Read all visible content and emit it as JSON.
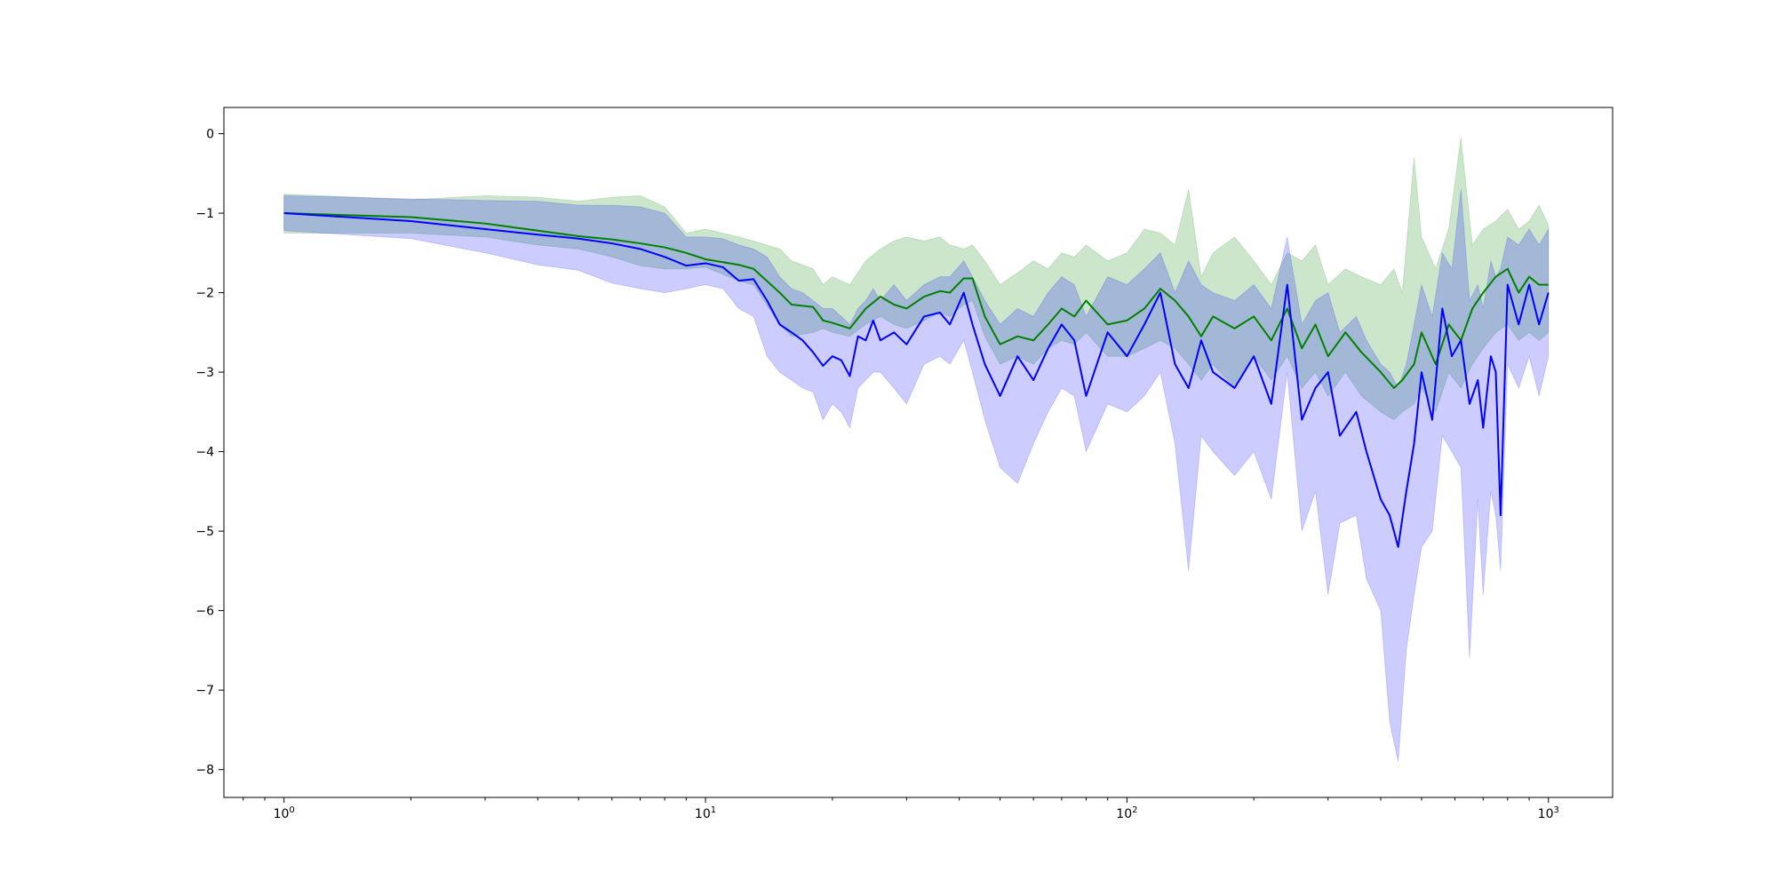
{
  "chart_data": {
    "type": "line",
    "title": "",
    "xlabel": "",
    "ylabel": "",
    "x_scale": "log",
    "xlim": [
      0.72,
      1420
    ],
    "ylim": [
      -8.35,
      0.33
    ],
    "grid": false,
    "legend": "none",
    "x_ticks": [
      {
        "value": 1,
        "base": "10",
        "exp": "0"
      },
      {
        "value": 10,
        "base": "10",
        "exp": "1"
      },
      {
        "value": 100,
        "base": "10",
        "exp": "2"
      },
      {
        "value": 1000,
        "base": "10",
        "exp": "3"
      }
    ],
    "y_ticks": [
      {
        "value": 0,
        "label": "0"
      },
      {
        "value": -1,
        "label": "−1"
      },
      {
        "value": -2,
        "label": "−2"
      },
      {
        "value": -3,
        "label": "−3"
      },
      {
        "value": -4,
        "label": "−4"
      },
      {
        "value": -5,
        "label": "−5"
      },
      {
        "value": -6,
        "label": "−6"
      },
      {
        "value": -7,
        "label": "−7"
      },
      {
        "value": -8,
        "label": "−8"
      }
    ],
    "series": [
      {
        "color": "#008000",
        "band_color": "#008000",
        "points": [
          [
            1,
            -1.0,
            -1.25,
            -0.76
          ],
          [
            2,
            -1.05,
            -1.25,
            -0.83
          ],
          [
            3,
            -1.13,
            -1.3,
            -0.78
          ],
          [
            4,
            -1.22,
            -1.4,
            -0.8
          ],
          [
            5,
            -1.29,
            -1.45,
            -0.85
          ],
          [
            6,
            -1.33,
            -1.55,
            -0.8
          ],
          [
            7,
            -1.38,
            -1.66,
            -0.78
          ],
          [
            8,
            -1.43,
            -1.7,
            -0.92
          ],
          [
            9,
            -1.5,
            -1.7,
            -1.25
          ],
          [
            10,
            -1.58,
            -1.68,
            -1.2
          ],
          [
            12,
            -1.65,
            -1.85,
            -1.3
          ],
          [
            13,
            -1.7,
            -1.9,
            -1.35
          ],
          [
            15,
            -2.0,
            -2.4,
            -1.45
          ],
          [
            16,
            -2.15,
            -2.55,
            -1.6
          ],
          [
            18,
            -2.18,
            -2.5,
            -1.7
          ],
          [
            19,
            -2.35,
            -2.45,
            -1.9
          ],
          [
            20,
            -2.38,
            -2.5,
            -1.8
          ],
          [
            22,
            -2.45,
            -2.55,
            -1.9
          ],
          [
            24,
            -2.2,
            -2.4,
            -1.6
          ],
          [
            26,
            -2.05,
            -2.3,
            -1.45
          ],
          [
            28,
            -2.15,
            -2.4,
            -1.35
          ],
          [
            30,
            -2.2,
            -2.45,
            -1.3
          ],
          [
            33,
            -2.05,
            -2.35,
            -1.35
          ],
          [
            36,
            -1.98,
            -2.25,
            -1.3
          ],
          [
            38,
            -2.0,
            -2.3,
            -1.4
          ],
          [
            41,
            -1.82,
            -2.15,
            -1.45
          ],
          [
            43,
            -1.82,
            -2.1,
            -1.4
          ],
          [
            46,
            -2.3,
            -2.55,
            -1.6
          ],
          [
            50,
            -2.65,
            -2.9,
            -1.9
          ],
          [
            55,
            -2.55,
            -2.8,
            -1.75
          ],
          [
            60,
            -2.6,
            -2.9,
            -1.6
          ],
          [
            65,
            -2.4,
            -2.7,
            -1.7
          ],
          [
            70,
            -2.2,
            -2.6,
            -1.5
          ],
          [
            75,
            -2.3,
            -2.65,
            -1.55
          ],
          [
            80,
            -2.1,
            -2.5,
            -1.4
          ],
          [
            90,
            -2.4,
            -2.8,
            -1.6
          ],
          [
            100,
            -2.35,
            -2.8,
            -1.5
          ],
          [
            110,
            -2.2,
            -2.7,
            -1.2
          ],
          [
            120,
            -1.95,
            -2.6,
            -1.25
          ],
          [
            130,
            -2.1,
            -2.7,
            -1.4
          ],
          [
            140,
            -2.3,
            -2.9,
            -0.7
          ],
          [
            150,
            -2.55,
            -3.1,
            -1.8
          ],
          [
            160,
            -2.3,
            -2.9,
            -1.5
          ],
          [
            180,
            -2.45,
            -3.2,
            -1.3
          ],
          [
            200,
            -2.3,
            -2.8,
            -1.6
          ],
          [
            220,
            -2.6,
            -3.1,
            -1.9
          ],
          [
            240,
            -2.2,
            -2.8,
            -1.5
          ],
          [
            260,
            -2.7,
            -3.2,
            -1.6
          ],
          [
            280,
            -2.4,
            -3.0,
            -1.4
          ],
          [
            300,
            -2.8,
            -3.3,
            -1.9
          ],
          [
            330,
            -2.5,
            -3.0,
            -1.7
          ],
          [
            360,
            -2.75,
            -3.3,
            -1.8
          ],
          [
            400,
            -3.0,
            -3.5,
            -1.9
          ],
          [
            430,
            -3.2,
            -3.6,
            -1.7
          ],
          [
            450,
            -3.1,
            -3.5,
            -2.0
          ],
          [
            480,
            -2.9,
            -3.4,
            -0.3
          ],
          [
            500,
            -2.5,
            -3.2,
            -1.3
          ],
          [
            540,
            -2.9,
            -3.5,
            -1.7
          ],
          [
            580,
            -2.4,
            -3.0,
            -1.2
          ],
          [
            620,
            -2.6,
            -3.2,
            -0.05
          ],
          [
            660,
            -2.2,
            -2.9,
            -1.4
          ],
          [
            700,
            -2.0,
            -2.7,
            -1.2
          ],
          [
            750,
            -1.8,
            -2.5,
            -1.1
          ],
          [
            800,
            -1.7,
            -2.4,
            -0.95
          ],
          [
            850,
            -2.0,
            -2.6,
            -1.2
          ],
          [
            900,
            -1.8,
            -2.5,
            -1.1
          ],
          [
            950,
            -1.9,
            -2.6,
            -0.9
          ],
          [
            1000,
            -1.9,
            -2.5,
            -1.15
          ]
        ]
      },
      {
        "color": "#0000ff",
        "band_color": "#0000ff",
        "points": [
          [
            1,
            -1.0,
            -1.22,
            -0.78
          ],
          [
            2,
            -1.1,
            -1.32,
            -0.82
          ],
          [
            3,
            -1.2,
            -1.5,
            -0.84
          ],
          [
            4,
            -1.27,
            -1.65,
            -0.85
          ],
          [
            5,
            -1.32,
            -1.72,
            -0.9
          ],
          [
            6,
            -1.38,
            -1.88,
            -0.9
          ],
          [
            7,
            -1.45,
            -1.95,
            -0.92
          ],
          [
            8,
            -1.55,
            -2.0,
            -1.0
          ],
          [
            9,
            -1.66,
            -1.95,
            -1.3
          ],
          [
            10,
            -1.63,
            -1.9,
            -1.3
          ],
          [
            11,
            -1.68,
            -1.95,
            -1.32
          ],
          [
            12,
            -1.85,
            -2.2,
            -1.4
          ],
          [
            13,
            -1.83,
            -2.3,
            -1.45
          ],
          [
            14,
            -2.1,
            -2.8,
            -1.55
          ],
          [
            15,
            -2.4,
            -3.0,
            -1.8
          ],
          [
            16,
            -2.5,
            -3.1,
            -1.95
          ],
          [
            17,
            -2.6,
            -3.2,
            -2.0
          ],
          [
            18,
            -2.75,
            -3.25,
            -2.1
          ],
          [
            19,
            -2.92,
            -3.6,
            -2.2
          ],
          [
            20,
            -2.8,
            -3.4,
            -2.2
          ],
          [
            21,
            -2.85,
            -3.5,
            -2.3
          ],
          [
            22,
            -3.05,
            -3.7,
            -2.4
          ],
          [
            23,
            -2.55,
            -3.2,
            -2.2
          ],
          [
            24,
            -2.6,
            -3.1,
            -2.1
          ],
          [
            25,
            -2.35,
            -3.0,
            -1.95
          ],
          [
            26,
            -2.6,
            -3.0,
            -2.1
          ],
          [
            28,
            -2.5,
            -3.2,
            -1.9
          ],
          [
            30,
            -2.65,
            -3.4,
            -2.1
          ],
          [
            33,
            -2.3,
            -2.9,
            -1.9
          ],
          [
            36,
            -2.25,
            -2.8,
            -1.8
          ],
          [
            38,
            -2.4,
            -2.9,
            -1.8
          ],
          [
            41,
            -2.0,
            -2.6,
            -1.6
          ],
          [
            43,
            -2.4,
            -3.0,
            -1.8
          ],
          [
            46,
            -2.9,
            -3.6,
            -2.1
          ],
          [
            50,
            -3.3,
            -4.2,
            -2.4
          ],
          [
            55,
            -2.8,
            -4.4,
            -2.2
          ],
          [
            60,
            -3.1,
            -3.9,
            -2.3
          ],
          [
            65,
            -2.7,
            -3.5,
            -2.0
          ],
          [
            70,
            -2.4,
            -3.2,
            -1.8
          ],
          [
            75,
            -2.6,
            -3.3,
            -1.9
          ],
          [
            80,
            -3.3,
            -4.0,
            -2.3
          ],
          [
            90,
            -2.5,
            -3.4,
            -1.8
          ],
          [
            100,
            -2.8,
            -3.5,
            -1.9
          ],
          [
            110,
            -2.4,
            -3.3,
            -1.7
          ],
          [
            120,
            -2.0,
            -3.0,
            -1.5
          ],
          [
            130,
            -2.9,
            -3.9,
            -2.0
          ],
          [
            140,
            -3.2,
            -5.5,
            -1.6
          ],
          [
            150,
            -2.6,
            -3.8,
            -1.9
          ],
          [
            160,
            -3.0,
            -4.0,
            -2.0
          ],
          [
            180,
            -3.2,
            -4.3,
            -2.1
          ],
          [
            200,
            -2.8,
            -4.0,
            -1.9
          ],
          [
            220,
            -3.4,
            -4.6,
            -2.2
          ],
          [
            240,
            -1.9,
            -3.0,
            -1.3
          ],
          [
            260,
            -3.6,
            -5.0,
            -2.4
          ],
          [
            280,
            -3.2,
            -4.5,
            -2.1
          ],
          [
            300,
            -3.0,
            -5.8,
            -2.0
          ],
          [
            320,
            -3.8,
            -4.9,
            -2.5
          ],
          [
            350,
            -3.5,
            -4.8,
            -2.3
          ],
          [
            370,
            -4.0,
            -5.6,
            -2.6
          ],
          [
            400,
            -4.6,
            -6.0,
            -2.9
          ],
          [
            420,
            -4.8,
            -7.4,
            -3.0
          ],
          [
            440,
            -5.2,
            -7.9,
            -3.2
          ],
          [
            460,
            -4.5,
            -6.5,
            -2.9
          ],
          [
            480,
            -3.9,
            -5.8,
            -2.4
          ],
          [
            500,
            -3.0,
            -5.2,
            -1.9
          ],
          [
            530,
            -3.6,
            -5.0,
            -2.3
          ],
          [
            560,
            -2.2,
            -3.8,
            -1.5
          ],
          [
            590,
            -2.8,
            -4.0,
            -1.7
          ],
          [
            620,
            -2.6,
            -4.2,
            -0.7
          ],
          [
            650,
            -3.4,
            -6.6,
            -2.1
          ],
          [
            680,
            -3.1,
            -4.6,
            -1.9
          ],
          [
            700,
            -3.7,
            -5.8,
            -2.2
          ],
          [
            730,
            -2.8,
            -4.5,
            -1.6
          ],
          [
            750,
            -3.0,
            -4.8,
            -1.8
          ],
          [
            770,
            -4.8,
            -5.5,
            -1.7
          ],
          [
            800,
            -1.9,
            -2.9,
            -1.3
          ],
          [
            850,
            -2.4,
            -3.2,
            -1.4
          ],
          [
            900,
            -1.9,
            -2.8,
            -1.2
          ],
          [
            950,
            -2.4,
            -3.3,
            -1.4
          ],
          [
            1000,
            -2.0,
            -2.8,
            -1.2
          ]
        ]
      }
    ]
  }
}
